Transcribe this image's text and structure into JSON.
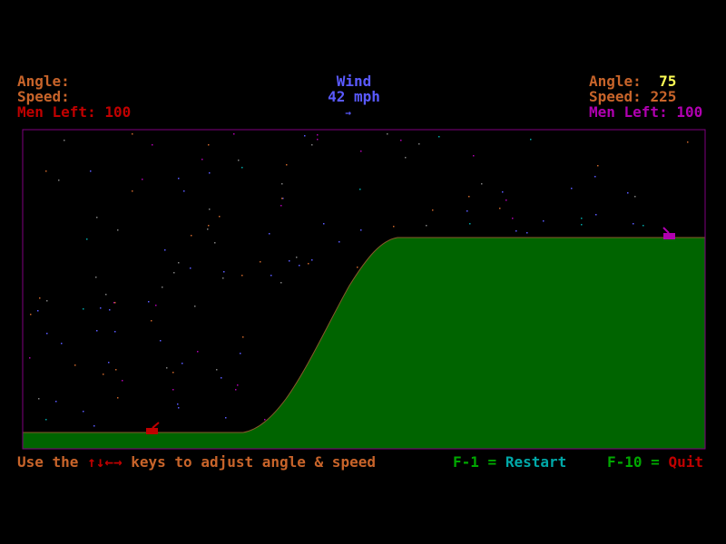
{
  "left_player": {
    "angle_label": "Angle:",
    "speed_label": "Speed:",
    "men_left_label": "Men Left:",
    "men_left": 100
  },
  "wind": {
    "label": "Wind",
    "speed": "42 mph",
    "direction": "→"
  },
  "right_player": {
    "angle_label": "Angle:",
    "angle": 75,
    "speed_label": "Speed:",
    "speed": 225,
    "men_left_label": "Men Left:",
    "men_left": 100
  },
  "footer": {
    "instructions_prefix": "Use the",
    "arrow_keys": "↑↓←→",
    "instructions_suffix": "keys to adjust angle & speed",
    "restart_key": "F-1 =",
    "restart_label": "Restart",
    "quit_key": "F-10 =",
    "quit_label": "Quit"
  }
}
